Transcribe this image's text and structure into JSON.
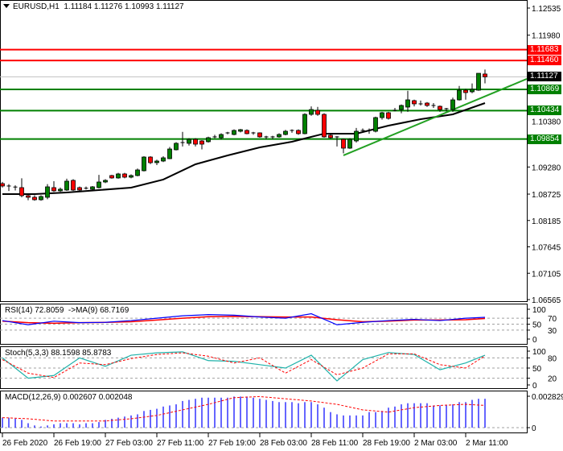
{
  "header": {
    "symbol": "EURUSD,H1",
    "open": "1.11184",
    "high": "1.11276",
    "low": "1.10993",
    "close": "1.11127"
  },
  "chart_data": {
    "type": "candlestick",
    "symbol": "EURUSD",
    "timeframe": "H1",
    "ylim": [
      1.06565,
      1.12535
    ],
    "y_ticks": [
      "1.12535",
      "1.11980",
      "1.10380",
      "1.09280",
      "1.08725",
      "1.08185",
      "1.07645",
      "1.07105",
      "1.06565"
    ],
    "x_tick_labels": [
      "26 Feb 2020",
      "26 Feb 19:00",
      "27 Feb 03:00",
      "27 Feb 11:00",
      "27 Feb 19:00",
      "28 Feb 03:00",
      "28 Feb 11:00",
      "28 Feb 19:00",
      "2 Mar 03:00",
      "2 Mar 11:00"
    ],
    "current_price": {
      "value": 1.11127,
      "label": "1.11127",
      "color": "#000000"
    },
    "levels": [
      {
        "value": 1.11683,
        "label": "1.11683",
        "color": "#ff0000"
      },
      {
        "value": 1.1146,
        "label": "1.11460",
        "color": "#ff0000"
      },
      {
        "value": 1.10869,
        "label": "1.10869",
        "color": "#008000"
      },
      {
        "value": 1.10434,
        "label": "1.10434",
        "color": "#008000"
      },
      {
        "value": 1.09854,
        "label": "1.09854",
        "color": "#008000"
      }
    ],
    "trendline": {
      "color": "#22a022",
      "points": [
        [
          53,
          1.09518
        ],
        [
          77,
          1.10837
        ]
      ]
    },
    "candles_ohlc": [
      [
        1.0894,
        1.08975,
        1.0886,
        1.08891
      ],
      [
        1.08891,
        1.0893,
        1.0879,
        1.08885
      ],
      [
        1.0887,
        1.08905,
        1.088,
        1.08858
      ],
      [
        1.08858,
        1.0905,
        1.0866,
        1.08693
      ],
      [
        1.08693,
        1.0872,
        1.086,
        1.0866
      ],
      [
        1.0866,
        1.087,
        1.0859,
        1.0861
      ],
      [
        1.0861,
        1.087,
        1.0859,
        1.08676
      ],
      [
        1.0866,
        1.0893,
        1.0862,
        1.08874
      ],
      [
        1.08858,
        1.0899,
        1.0877,
        1.08792
      ],
      [
        1.08792,
        1.0886,
        1.0877,
        1.08825
      ],
      [
        1.08808,
        1.0904,
        1.0879,
        1.0899
      ],
      [
        1.09006,
        1.0903,
        1.0879,
        1.08808
      ],
      [
        1.08858,
        1.0888,
        1.0879,
        1.08808
      ],
      [
        1.08841,
        1.0888,
        1.0882,
        1.08845
      ],
      [
        1.08825,
        1.0889,
        1.0881,
        1.08874
      ],
      [
        1.08858,
        1.0912,
        1.0884,
        1.08973
      ],
      [
        1.08973,
        1.0903,
        1.0895,
        1.09006
      ],
      [
        1.09105,
        1.0912,
        1.0904,
        1.09056
      ],
      [
        1.09056,
        1.0916,
        1.0904,
        1.09138
      ],
      [
        1.09138,
        1.0916,
        1.0905,
        1.09072
      ],
      [
        1.09072,
        1.0913,
        1.0905,
        1.09105
      ],
      [
        1.09105,
        1.0925,
        1.0909,
        1.0922
      ],
      [
        1.09204,
        1.095,
        1.0919,
        1.09484
      ],
      [
        1.09484,
        1.095,
        1.0934,
        1.09369
      ],
      [
        1.09369,
        1.0943,
        1.0932,
        1.09402
      ],
      [
        1.09402,
        1.095,
        1.0938,
        1.09468
      ],
      [
        1.09451,
        1.0969,
        1.0944,
        1.09649
      ],
      [
        1.09633,
        1.0979,
        1.0962,
        1.09765
      ],
      [
        1.09781,
        1.1,
        1.097,
        1.09775
      ],
      [
        1.09765,
        1.0987,
        1.0972,
        1.09847
      ],
      [
        1.09847,
        1.0987,
        1.097,
        1.09748
      ],
      [
        1.09814,
        1.0983,
        1.0964,
        1.09748
      ],
      [
        1.09798,
        1.099,
        1.0978,
        1.0988
      ],
      [
        1.09897,
        1.0994,
        1.0987,
        1.0989
      ],
      [
        1.0988,
        1.0997,
        1.0984,
        1.09946
      ],
      [
        1.09979,
        1.1,
        1.0995,
        1.09975
      ],
      [
        1.09946,
        1.1005,
        1.0993,
        1.10029
      ],
      [
        1.10012,
        1.1006,
        1.0999,
        1.10045
      ],
      [
        1.10029,
        1.1005,
        1.0995,
        1.09963
      ],
      [
        1.09979,
        1.1,
        1.0994,
        1.0997
      ],
      [
        1.09979,
        1.0999,
        1.0988,
        1.09897
      ],
      [
        1.09897,
        1.0992,
        1.0985,
        1.0989
      ],
      [
        1.0989,
        1.0992,
        1.0985,
        1.09897
      ],
      [
        1.09897,
        1.0997,
        1.0988,
        1.09946
      ],
      [
        1.09946,
        1.1004,
        1.0993,
        1.10012
      ],
      [
        1.10029,
        1.1005,
        1.0998,
        1.10025
      ],
      [
        1.10029,
        1.1005,
        1.0994,
        1.09963
      ],
      [
        1.09963,
        1.1038,
        1.0995,
        1.10358
      ],
      [
        1.10358,
        1.1052,
        1.1033,
        1.10457
      ],
      [
        1.10441,
        1.1051,
        1.1033,
        1.10358
      ],
      [
        1.10358,
        1.1038,
        1.0988,
        1.09897
      ],
      [
        1.0993,
        1.0996,
        1.0986,
        1.0988
      ],
      [
        1.09897,
        1.0991,
        1.097,
        1.0989
      ],
      [
        1.09847,
        1.0986,
        1.0956,
        1.09666
      ],
      [
        1.09666,
        1.0987,
        1.0965,
        1.09847
      ],
      [
        1.09814,
        1.1008,
        1.0978,
        1.10012
      ],
      [
        1.10029,
        1.1007,
        1.0999,
        1.10025
      ],
      [
        1.10025,
        1.1007,
        1.0996,
        1.10029
      ],
      [
        1.10012,
        1.1031,
        1.0999,
        1.10292
      ],
      [
        1.10292,
        1.1041,
        1.1025,
        1.10391
      ],
      [
        1.10391,
        1.1041,
        1.1025,
        1.10276
      ],
      [
        1.10441,
        1.1049,
        1.1042,
        1.10437
      ],
      [
        1.10457,
        1.1056,
        1.1038,
        1.1054
      ],
      [
        1.10507,
        1.1084,
        1.1041,
        1.10655
      ],
      [
        1.10639,
        1.1066,
        1.1052,
        1.10573
      ],
      [
        1.10573,
        1.1064,
        1.1054,
        1.1057
      ],
      [
        1.10589,
        1.1061,
        1.1051,
        1.1054
      ],
      [
        1.1054,
        1.1059,
        1.1049,
        1.10537
      ],
      [
        1.10523,
        1.1054,
        1.1041,
        1.10457
      ],
      [
        1.10474,
        1.1049,
        1.1042,
        1.1047
      ],
      [
        1.10457,
        1.107,
        1.1041,
        1.10655
      ],
      [
        1.10655,
        1.1094,
        1.1064,
        1.10853
      ],
      [
        1.10853,
        1.1088,
        1.1066,
        1.10804
      ],
      [
        1.1082,
        1.1099,
        1.1079,
        1.1087
      ],
      [
        1.10853,
        1.112,
        1.1084,
        1.11199
      ],
      [
        1.11184,
        1.11276,
        1.10993,
        1.11127
      ]
    ],
    "bull_color": "#008000",
    "bear_color": "#ff0000",
    "moving_average": {
      "color": "#000000",
      "points": [
        [
          0,
          1.08726
        ],
        [
          5,
          1.08726
        ],
        [
          10,
          1.08759
        ],
        [
          15,
          1.08808
        ],
        [
          20,
          1.08858
        ],
        [
          25,
          1.09023
        ],
        [
          30,
          1.09336
        ],
        [
          35,
          1.09517
        ],
        [
          40,
          1.09682
        ],
        [
          45,
          1.09798
        ],
        [
          50,
          1.09963
        ],
        [
          55,
          1.09963
        ],
        [
          60,
          1.10127
        ],
        [
          65,
          1.10259
        ],
        [
          70,
          1.10358
        ],
        [
          75,
          1.10589
        ]
      ]
    },
    "indicators": {
      "sample_index": [
        0,
        4,
        8,
        12,
        16,
        20,
        24,
        28,
        32,
        36,
        40,
        44,
        48,
        52,
        56,
        60,
        64,
        68,
        72,
        75
      ],
      "rsi": {
        "title": "RSI(14) 72.8059  ->MA(9) 68.7169",
        "levels": [
          "100",
          "70",
          "50",
          "30",
          "0"
        ],
        "main_color": "#0000ff",
        "ma_color": "#ff0000",
        "main": [
          62,
          48,
          60,
          55,
          56,
          62,
          70,
          78,
          82,
          80,
          74,
          70,
          85,
          48,
          56,
          62,
          66,
          62,
          70,
          73
        ],
        "ma": [
          60,
          55,
          53,
          55,
          56,
          58,
          64,
          70,
          75,
          76,
          75,
          74,
          74,
          65,
          58,
          60,
          64,
          64,
          65,
          69
        ]
      },
      "stoch": {
        "title": "Stoch(5,3,3) 88.1598 85.8783",
        "levels": [
          "100",
          "80",
          "50",
          "20",
          "0"
        ],
        "main_color": "#20b2aa",
        "signal_color": "#ff0000",
        "main": [
          80,
          20,
          28,
          80,
          55,
          88,
          95,
          98,
          72,
          70,
          60,
          50,
          88,
          12,
          75,
          96,
          90,
          45,
          65,
          88
        ],
        "signal": [
          75,
          35,
          22,
          65,
          60,
          78,
          90,
          95,
          85,
          65,
          80,
          35,
          75,
          30,
          50,
          92,
          92,
          60,
          50,
          86
        ]
      },
      "macd": {
        "title": "MACD(12,26,9) 0.002607 0.002048",
        "levels": [
          "0.002829",
          "0"
        ],
        "ylim": [
          0,
          0.002829
        ],
        "hist_color": "#0000ff",
        "signal_color": "#ff0000",
        "histogram": [
          0.0009,
          0.0009,
          0.0008,
          0.0007,
          0.0004,
          0.0002,
          0.0001,
          0.0002,
          0.0003,
          0.0004,
          0.0004,
          0.0004,
          0.0003,
          0.0004,
          0.0004,
          0.0005,
          0.0007,
          0.0008,
          0.0009,
          0.001,
          0.0011,
          0.0012,
          0.0015,
          0.0016,
          0.0017,
          0.0019,
          0.002,
          0.0021,
          0.0024,
          0.0025,
          0.0026,
          0.0027,
          0.0027,
          0.0027,
          0.0027,
          0.0027,
          0.0028,
          0.0028,
          0.0028,
          0.0027,
          0.0026,
          0.0025,
          0.0024,
          0.0023,
          0.0023,
          0.0023,
          0.0022,
          0.0023,
          0.0023,
          0.0021,
          0.0018,
          0.0014,
          0.0012,
          0.0011,
          0.0011,
          0.0011,
          0.0011,
          0.0014,
          0.0014,
          0.0015,
          0.0018,
          0.0019,
          0.0021,
          0.0022,
          0.0022,
          0.0022,
          0.0022,
          0.002,
          0.002,
          0.002,
          0.0021,
          0.0023,
          0.0023,
          0.0025,
          0.0026,
          0.0026
        ],
        "signal": [
          0.0009,
          0.0008,
          0.0006,
          0.0006,
          0.0006,
          0.0008,
          0.0011,
          0.0016,
          0.0021,
          0.0027,
          0.0028,
          0.0026,
          0.0024,
          0.0021,
          0.0016,
          0.0014,
          0.0018,
          0.002,
          0.0021,
          0.002
        ]
      }
    }
  }
}
